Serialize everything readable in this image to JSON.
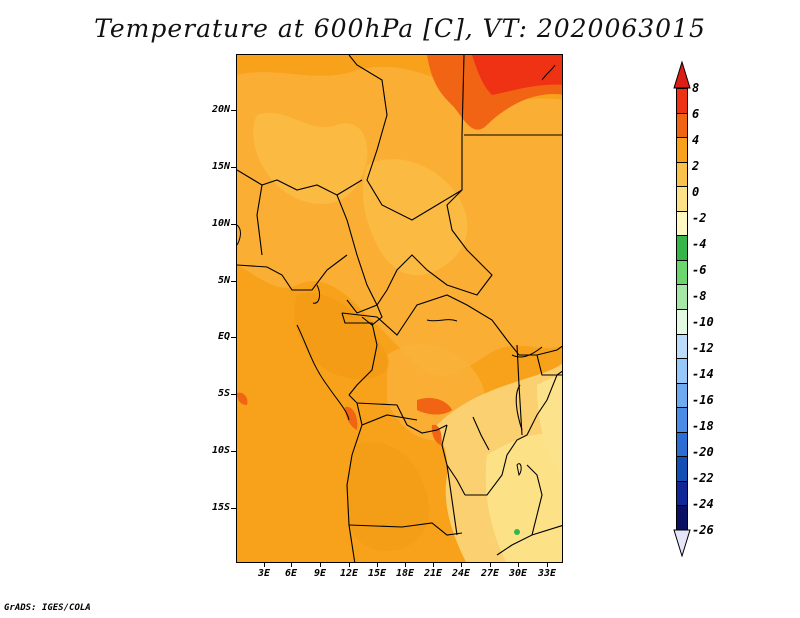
{
  "title": "Temperature at 600hPa [C], VT: 2020063015",
  "footer": "GrADS: IGES/COLA",
  "map": {
    "lat_labels": [
      "20N",
      "15N",
      "10N",
      "5N",
      "EQ",
      "5S",
      "10S",
      "15S"
    ],
    "lon_labels": [
      "3E",
      "6E",
      "9E",
      "12E",
      "15E",
      "18E",
      "21E",
      "24E",
      "27E",
      "30E",
      "33E"
    ]
  },
  "colorbar": {
    "labels": [
      "8",
      "6",
      "4",
      "2",
      "0",
      "-2",
      "-4",
      "-6",
      "-8",
      "-10",
      "-12",
      "-14",
      "-16",
      "-18",
      "-20",
      "-22",
      "-24",
      "-26"
    ],
    "colors": [
      "#f03214",
      "#f06414",
      "#f7a21a",
      "#fac24a",
      "#fde187",
      "#fff8c2",
      "#36b649",
      "#6bd66b",
      "#a5e8a5",
      "#e1fae1",
      "#bcdcfa",
      "#96c8fa",
      "#6eaaf0",
      "#4b8ce6",
      "#2c6ed2",
      "#1450b4",
      "#0f2896",
      "#0a1064"
    ],
    "top_arrow_color": "#dc1e14",
    "bottom_arrow_color": "#e6e6fa"
  }
}
